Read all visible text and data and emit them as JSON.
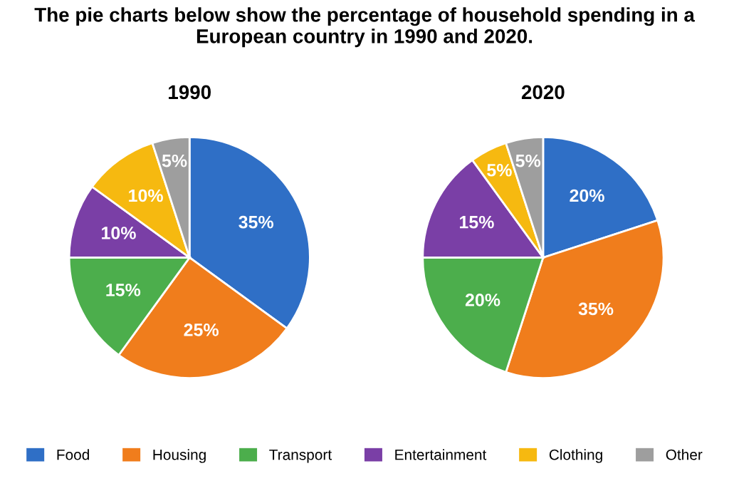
{
  "chart_data": [
    {
      "type": "pie",
      "title": "1990",
      "annotations": [
        "The pie charts below show the percentage of household spending in a European country in 1990 and 2020."
      ],
      "categories": [
        "Food",
        "Housing",
        "Transport",
        "Entertainment",
        "Clothing",
        "Other"
      ],
      "values": [
        35,
        25,
        15,
        10,
        10,
        5
      ],
      "value_labels": [
        "35%",
        "25%",
        "15%",
        "10%",
        "10%",
        "5%"
      ],
      "colors": [
        "#2f6fc6",
        "#f07d1c",
        "#4cae4c",
        "#7a3fa6",
        "#f6b910",
        "#9e9e9e"
      ],
      "legend": "bottom"
    },
    {
      "type": "pie",
      "title": "2020",
      "categories": [
        null,
        null,
        null,
        null,
        null,
        null
      ],
      "values": [
        20,
        35,
        20,
        15,
        5,
        5
      ],
      "value_labels": [
        "20%",
        "35%",
        "20%",
        "15%",
        "5%",
        "5%"
      ],
      "colors": [
        "#2f6fc6",
        "#f07d1c",
        "#4cae4c",
        "#7a3fa6",
        "#f6b910",
        "#9e9e9e"
      ]
    }
  ]
}
